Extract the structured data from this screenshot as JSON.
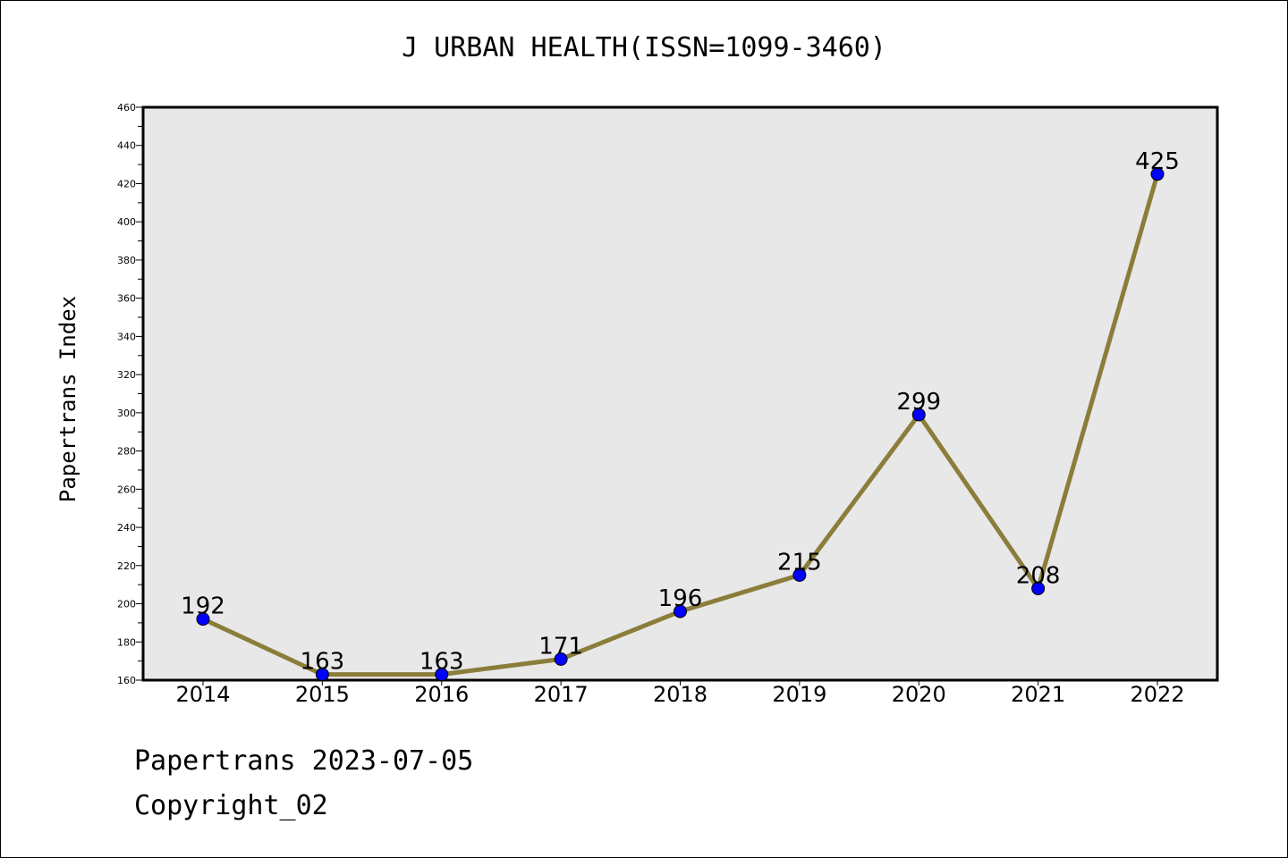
{
  "chart_data": {
    "type": "line",
    "title": "J URBAN HEALTH(ISSN=1099-3460)",
    "xlabel": "",
    "ylabel": "Papertrans Index",
    "categories": [
      "2014",
      "2015",
      "2016",
      "2017",
      "2018",
      "2019",
      "2020",
      "2021",
      "2022"
    ],
    "values": [
      192,
      163,
      163,
      171,
      196,
      215,
      299,
      208,
      425
    ],
    "ylim": [
      160,
      460
    ],
    "ytick_step": 20,
    "grid": false,
    "legend": "none",
    "colors": {
      "line": "#8b7d3a",
      "marker": "#0000ff",
      "plot_background": "#e8e8e8"
    }
  },
  "footer": {
    "line1": "Papertrans 2023-07-05",
    "line2": "Copyright_02"
  }
}
